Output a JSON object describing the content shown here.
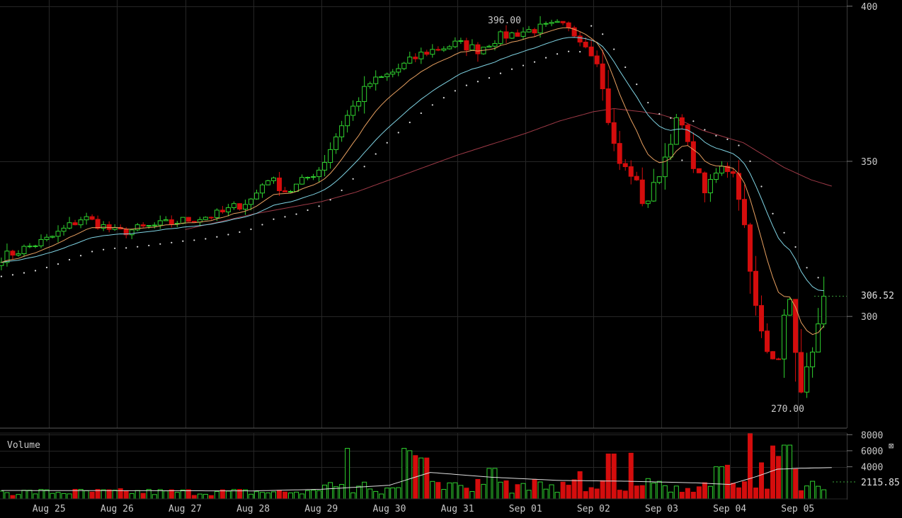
{
  "panel_labels": {
    "volume": "Volume",
    "volume_close_icon": "⊠"
  },
  "markers": {
    "high_label": "396.00",
    "low_label": "270.00",
    "last_price_label": "306.52",
    "last_volume_label": "2115.85"
  },
  "colors": {
    "background": "#000000",
    "grid": "#262626",
    "axis_text": "#c8c8c8",
    "up": "#2fd12f",
    "down": "#d40d0d",
    "ema_fast": "#e8a060",
    "ema_slow": "#7fd3e3",
    "sma_long": "#9e3a47",
    "sar": "#e0e0e0",
    "volume_ma": "#dddddd"
  },
  "chart_data": [
    {
      "type": "candlestick",
      "x_tick_labels": [
        "Aug 25",
        "Aug 26",
        "Aug 27",
        "Aug 28",
        "Aug 29",
        "Aug 30",
        "Aug 31",
        "Sep 01",
        "Sep 02",
        "Sep 03",
        "Sep 04",
        "Sep 05"
      ],
      "x_tick_index": [
        0,
        1,
        2,
        3,
        4,
        5,
        6,
        7,
        8,
        9,
        10,
        11
      ],
      "x_range_days": [
        -0.72,
        11.72
      ],
      "y_ticks": [
        "400",
        "350",
        "300"
      ],
      "y_tick_values": [
        400,
        350,
        300
      ],
      "ylim": [
        264,
        402
      ],
      "annotations": {
        "high": 396.0,
        "low": 270.0,
        "last": 306.52
      },
      "ohlc_anchors": {
        "t": [
          -0.7,
          0.0,
          0.5,
          1.0,
          1.5,
          2.0,
          2.5,
          3.0,
          3.2,
          3.5,
          4.0,
          4.3,
          4.7,
          5.0,
          5.5,
          6.0,
          6.3,
          6.6,
          7.0,
          7.5,
          7.8,
          8.05,
          8.2,
          8.35,
          8.6,
          8.75,
          9.0,
          9.25,
          9.45,
          9.65,
          9.85,
          10.05,
          10.2,
          10.4,
          10.55,
          10.7,
          10.85,
          11.05,
          11.25,
          11.45
        ],
        "close": [
          319,
          325,
          332,
          327,
          329,
          331,
          333,
          338,
          345,
          340,
          348,
          362,
          375,
          378,
          385,
          388,
          386,
          390,
          392,
          394,
          390,
          383,
          365,
          350,
          345,
          335,
          348,
          365,
          350,
          340,
          348,
          347,
          332,
          300,
          288,
          285,
          310,
          275,
          293,
          306.5
        ]
      },
      "sma_long_anchors": {
        "t": [
          2.0,
          3.0,
          4.0,
          4.5,
          5.0,
          6.0,
          7.0,
          7.5,
          8.0,
          8.3,
          8.7,
          9.0,
          9.3,
          9.6,
          9.9,
          10.2,
          10.5,
          10.8,
          11.2,
          11.5
        ],
        "value": [
          328,
          333,
          337,
          340,
          344,
          352,
          359,
          363,
          366,
          367,
          366,
          365,
          363,
          360,
          358,
          356,
          352,
          348,
          344,
          342
        ]
      }
    },
    {
      "type": "bar",
      "name": "Volume",
      "y_ticks": [
        "8000",
        "6000",
        "4000"
      ],
      "y_tick_values": [
        8000,
        6000,
        4000
      ],
      "ylim": [
        0,
        8200
      ],
      "last_value": 2115.85,
      "spikes": [
        {
          "t": 4.4,
          "value": 6300
        },
        {
          "t": 5.2,
          "value": 6300
        },
        {
          "t": 5.3,
          "value": 6000
        },
        {
          "t": 5.4,
          "value": 5400
        },
        {
          "t": 5.5,
          "value": 5100
        },
        {
          "t": 6.5,
          "value": 3800
        },
        {
          "t": 7.8,
          "value": 3400
        },
        {
          "t": 8.25,
          "value": 5600
        },
        {
          "t": 8.55,
          "value": 5700
        },
        {
          "t": 9.85,
          "value": 4000
        },
        {
          "t": 10.0,
          "value": 4200
        },
        {
          "t": 10.3,
          "value": 8200
        },
        {
          "t": 10.5,
          "value": 4500
        },
        {
          "t": 10.65,
          "value": 6600
        },
        {
          "t": 10.75,
          "value": 5300
        },
        {
          "t": 10.85,
          "value": 6700
        },
        {
          "t": 11.0,
          "value": 3700
        }
      ],
      "ma_anchors": {
        "t": [
          -0.7,
          3.0,
          4.0,
          5.0,
          5.6,
          6.5,
          7.5,
          8.5,
          9.5,
          10.0,
          10.4,
          10.7,
          11.0,
          11.5
        ],
        "value": [
          1050,
          1000,
          1200,
          1700,
          3300,
          2700,
          2300,
          2200,
          2000,
          1800,
          2800,
          3700,
          3800,
          3900
        ]
      }
    }
  ]
}
